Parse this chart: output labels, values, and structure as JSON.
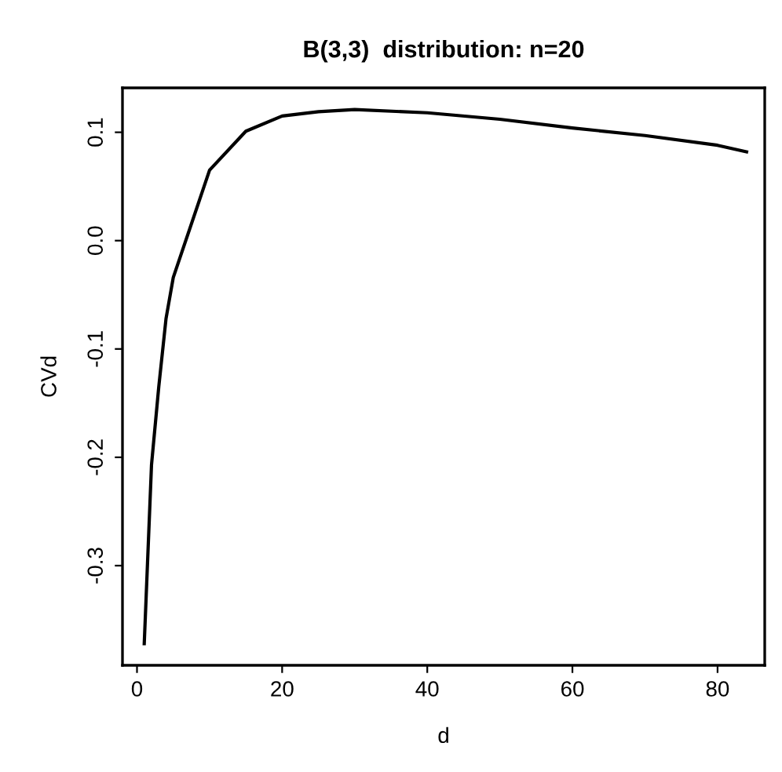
{
  "chart_data": {
    "type": "line",
    "title": "B(3,3)  distribution: n=20",
    "xlabel": "d",
    "ylabel": "CVd",
    "x": [
      1,
      2,
      3,
      4,
      5,
      10,
      15,
      20,
      25,
      30,
      40,
      50,
      60,
      70,
      80,
      84
    ],
    "series": [
      {
        "color": "#000000",
        "values": [
          -0.372,
          -0.207,
          -0.135,
          -0.072,
          -0.034,
          0.065,
          0.101,
          0.115,
          0.119,
          0.121,
          0.118,
          0.112,
          0.104,
          0.097,
          0.088,
          0.082
        ]
      }
    ],
    "xlim": [
      -2,
      86.5
    ],
    "ylim": [
      -0.392,
      0.141
    ],
    "xticks": [
      0,
      20,
      40,
      60,
      80
    ],
    "yticks": [
      -0.3,
      -0.2,
      -0.1,
      {
        "value": 0,
        "label": "0.0"
      },
      0.1
    ],
    "grid": false,
    "legend": false,
    "marker": "none",
    "line_style": "solid"
  }
}
